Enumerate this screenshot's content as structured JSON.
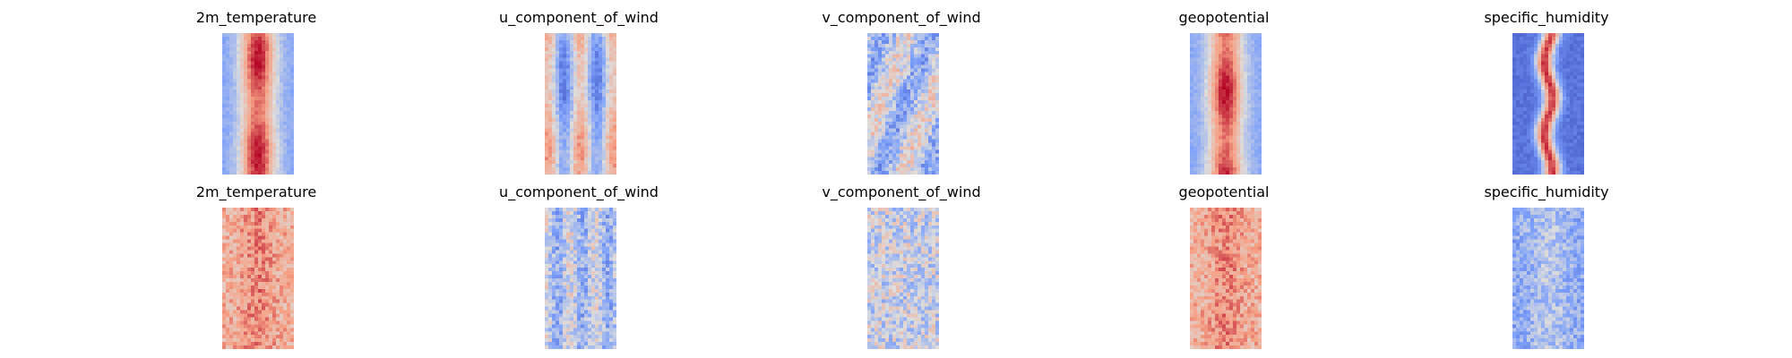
{
  "chart_data": [
    {
      "type": "heatmap",
      "colormap": "coolwarm",
      "axes": "off",
      "rows": [
        {
          "panels": [
            {
              "title": "2m_temperature",
              "pattern": "warm_core"
            },
            {
              "title": "u_component_of_wind",
              "pattern": "streaky"
            },
            {
              "title": "v_component_of_wind",
              "pattern": "speckled"
            },
            {
              "title": "geopotential",
              "pattern": "warm_core"
            },
            {
              "title": "specific_humidity",
              "pattern": "moist_core"
            }
          ]
        },
        {
          "panels": [
            {
              "title": "2m_temperature",
              "pattern": "noisy_warm"
            },
            {
              "title": "u_component_of_wind",
              "pattern": "noisy_neutral"
            },
            {
              "title": "v_component_of_wind",
              "pattern": "noisy_speckled"
            },
            {
              "title": "geopotential",
              "pattern": "noisy_warm"
            },
            {
              "title": "specific_humidity",
              "pattern": "noisy_cool"
            }
          ]
        }
      ]
    }
  ]
}
